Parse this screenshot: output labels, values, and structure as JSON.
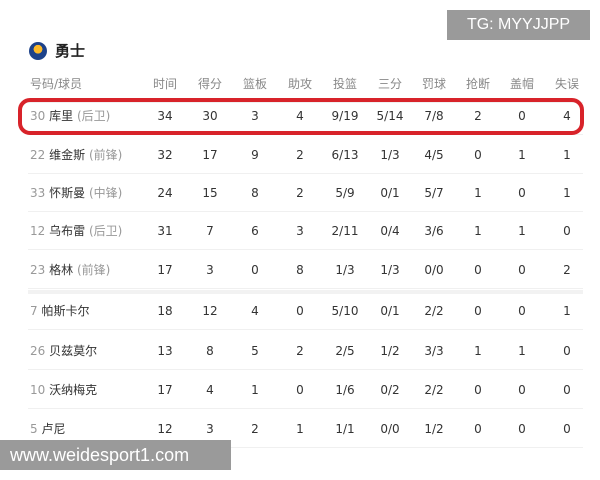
{
  "team": {
    "name": "勇士",
    "logo_icon": "warriors-logo"
  },
  "headers": [
    "号码/球员",
    "时间",
    "得分",
    "篮板",
    "助攻",
    "投篮",
    "三分",
    "罚球",
    "抢断",
    "盖帽",
    "失误"
  ],
  "players": [
    {
      "number": "30",
      "name": "库里",
      "position": "(后卫)",
      "stats": [
        "34",
        "30",
        "3",
        "4",
        "9/19",
        "5/14",
        "7/8",
        "2",
        "0",
        "4"
      ]
    },
    {
      "number": "22",
      "name": "维金斯",
      "position": "(前锋)",
      "stats": [
        "32",
        "17",
        "9",
        "2",
        "6/13",
        "1/3",
        "4/5",
        "0",
        "1",
        "1"
      ]
    },
    {
      "number": "33",
      "name": "怀斯曼",
      "position": "(中锋)",
      "stats": [
        "24",
        "15",
        "8",
        "2",
        "5/9",
        "0/1",
        "5/7",
        "1",
        "0",
        "1"
      ]
    },
    {
      "number": "12",
      "name": "乌布雷",
      "position": "(后卫)",
      "stats": [
        "31",
        "7",
        "6",
        "3",
        "2/11",
        "0/4",
        "3/6",
        "1",
        "1",
        "0"
      ]
    },
    {
      "number": "23",
      "name": "格林",
      "position": "(前锋)",
      "stats": [
        "17",
        "3",
        "0",
        "8",
        "1/3",
        "1/3",
        "0/0",
        "0",
        "0",
        "2"
      ]
    },
    {
      "number": "7",
      "name": "帕斯卡尔",
      "position": "",
      "stats": [
        "18",
        "12",
        "4",
        "0",
        "5/10",
        "0/1",
        "2/2",
        "0",
        "0",
        "1"
      ]
    },
    {
      "number": "26",
      "name": "贝兹莫尔",
      "position": "",
      "stats": [
        "13",
        "8",
        "5",
        "2",
        "2/5",
        "1/2",
        "3/3",
        "1",
        "1",
        "0"
      ]
    },
    {
      "number": "10",
      "name": "沃纳梅克",
      "position": "",
      "stats": [
        "17",
        "4",
        "1",
        "0",
        "1/6",
        "0/2",
        "2/2",
        "0",
        "0",
        "0"
      ]
    },
    {
      "number": "5",
      "name": "卢尼",
      "position": "",
      "stats": [
        "12",
        "3",
        "2",
        "1",
        "1/1",
        "0/0",
        "1/2",
        "0",
        "0",
        "0"
      ]
    }
  ],
  "highlight_color": "#d8232a",
  "watermarks": {
    "tg": "TG: MYYJJPP",
    "site": "www.weidesport1.com"
  }
}
